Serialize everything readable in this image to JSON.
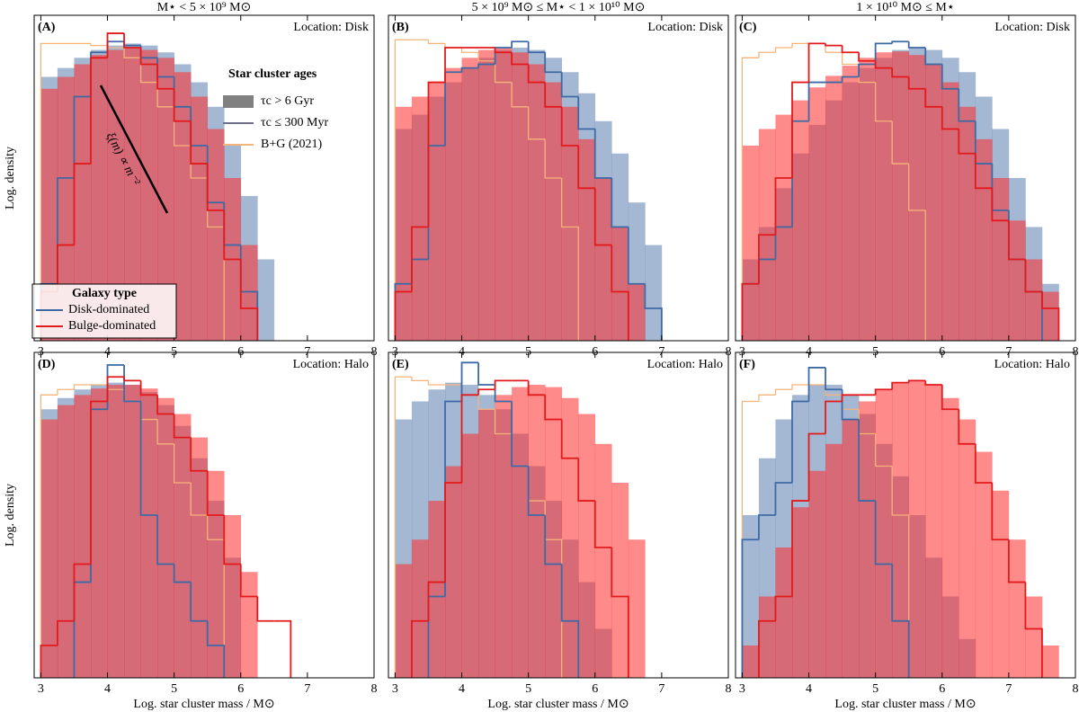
{
  "chart_data": [
    {
      "type": "histogram",
      "title": "M⋆ < 5 × 10⁹ M⊙",
      "panel_label": "(A)",
      "location": "Location: Disk",
      "ylabel": "Log. density",
      "log_y": true,
      "xlim": [
        2.9,
        8.0
      ],
      "xticks": [
        3,
        4,
        5,
        6,
        7,
        8
      ],
      "ylim": [
        0.0002,
        2
      ],
      "bins": [
        3,
        3.25,
        3.5,
        3.75,
        4,
        4.25,
        4.5,
        4.75,
        5,
        5.25,
        5.5,
        5.75,
        6,
        6.25,
        6.5,
        6.75,
        7,
        7.25,
        7.5,
        7.75,
        8
      ],
      "annotation": "ξ(m) ∝ m⁻²",
      "legends": [
        {
          "title": "Star cluster ages",
          "entries": [
            "τc > 6 Gyr",
            "τc ≤ 300 Myr",
            "B+G (2021)"
          ]
        },
        {
          "title": "Galaxy type",
          "entries": [
            "Disk-dominated",
            "Bulge-dominated"
          ]
        }
      ],
      "series": [
        {
          "name": "Disk-dominated",
          "style": "filled",
          "color": "#4a72a8",
          "values": [
            0.35,
            0.45,
            0.6,
            0.75,
            0.85,
            0.9,
            0.85,
            0.7,
            0.5,
            0.3,
            0.15,
            0.05,
            0.012,
            0.002,
            null,
            null,
            null,
            null,
            null,
            null
          ]
        },
        {
          "name": "Bulge-dominated",
          "style": "filled",
          "color": "#ff2a2a",
          "values": [
            0.25,
            0.35,
            0.5,
            0.65,
            0.75,
            0.8,
            0.75,
            0.6,
            0.4,
            0.2,
            0.08,
            0.02,
            0.003,
            null,
            null,
            null,
            null,
            null,
            null,
            null
          ]
        },
        {
          "name": "B+G (2021)",
          "style": "step",
          "color": "#f5b47a",
          "values": [
            0.9,
            0.9,
            0.9,
            0.85,
            0.8,
            0.6,
            0.3,
            0.15,
            0.05,
            0.02,
            0.005,
            null,
            null,
            null,
            null,
            null,
            null,
            null,
            null,
            null
          ]
        },
        {
          "name": "Disk-dominated",
          "style": "step",
          "color": "#3d6aa5",
          "values": [
            0.001,
            0.02,
            0.2,
            0.7,
            0.95,
            0.85,
            0.6,
            0.35,
            0.15,
            0.05,
            0.01,
            0.003,
            0.0008,
            null,
            null,
            null,
            null,
            null,
            null,
            null
          ]
        },
        {
          "name": "Bulge-dominated",
          "style": "step",
          "color": "#e31a1c",
          "values": [
            0.0008,
            0.003,
            0.03,
            0.6,
            1.2,
            0.8,
            0.5,
            0.25,
            0.1,
            0.03,
            0.008,
            0.002,
            0.0005,
            null,
            null,
            null,
            null,
            null,
            null,
            null
          ]
        }
      ]
    },
    {
      "type": "histogram",
      "title": "5 × 10⁹ M⊙ ≤ M⋆ < 1 × 10¹⁰ M⊙",
      "panel_label": "(B)",
      "location": "Location: Disk",
      "log_y": true,
      "xlim": [
        2.9,
        8.0
      ],
      "xticks": [
        3,
        4,
        5,
        6,
        7,
        8
      ],
      "ylim": [
        0.0002,
        2
      ],
      "bins": [
        3,
        3.25,
        3.5,
        3.75,
        4,
        4.25,
        4.5,
        4.75,
        5,
        5.25,
        5.5,
        5.75,
        6,
        6.25,
        6.5,
        6.75,
        7,
        7.25,
        7.5,
        7.75,
        8
      ],
      "series": [
        {
          "name": "Disk-dominated",
          "style": "filled",
          "color": "#4a72a8",
          "values": [
            0.08,
            0.12,
            0.2,
            0.3,
            0.45,
            0.6,
            0.75,
            0.8,
            0.75,
            0.6,
            0.4,
            0.22,
            0.1,
            0.04,
            0.01,
            0.003,
            null,
            null,
            null,
            null
          ]
        },
        {
          "name": "Bulge-dominated",
          "style": "filled",
          "color": "#ff2a2a",
          "values": [
            0.15,
            0.2,
            0.3,
            0.45,
            0.6,
            0.75,
            0.8,
            0.7,
            0.5,
            0.3,
            0.15,
            0.06,
            0.02,
            0.005,
            0.001,
            null,
            null,
            null,
            null,
            null
          ]
        },
        {
          "name": "B+G (2021)",
          "style": "step",
          "color": "#f5b47a",
          "values": [
            1.0,
            1.0,
            0.9,
            0.8,
            0.7,
            0.55,
            0.3,
            0.15,
            0.06,
            0.02,
            0.005,
            null,
            null,
            null,
            null,
            null,
            null,
            null,
            null,
            null
          ]
        },
        {
          "name": "Disk-dominated",
          "style": "step",
          "color": "#3d6aa5",
          "values": [
            0.001,
            0.002,
            0.05,
            0.4,
            0.45,
            0.5,
            0.8,
            0.95,
            0.7,
            0.4,
            0.2,
            0.08,
            0.02,
            0.005,
            0.001,
            0.0005,
            null,
            null,
            null,
            null
          ]
        },
        {
          "name": "Bulge-dominated",
          "style": "step",
          "color": "#e31a1c",
          "values": [
            0.0008,
            0.005,
            0.3,
            0.8,
            0.8,
            0.8,
            0.7,
            0.5,
            0.3,
            0.15,
            0.05,
            0.015,
            0.003,
            0.0008,
            null,
            null,
            null,
            null,
            null,
            null
          ]
        }
      ]
    },
    {
      "type": "histogram",
      "title": "1 × 10¹⁰ M⊙ ≤ M⋆",
      "panel_label": "(C)",
      "location": "Location: Disk",
      "log_y": true,
      "xlim": [
        2.9,
        8.0
      ],
      "xticks": [
        3,
        4,
        5,
        6,
        7,
        8
      ],
      "ylim": [
        0.0002,
        2
      ],
      "bins": [
        3,
        3.25,
        3.5,
        3.75,
        4,
        4.25,
        4.5,
        4.75,
        5,
        5.25,
        5.5,
        5.75,
        6,
        6.25,
        6.5,
        6.75,
        7,
        7.25,
        7.5,
        7.75,
        8
      ],
      "series": [
        {
          "name": "Disk-dominated",
          "style": "filled",
          "color": "#4a72a8",
          "values": [
            0.002,
            0.005,
            0.015,
            0.04,
            0.09,
            0.18,
            0.3,
            0.45,
            0.6,
            0.75,
            0.8,
            0.75,
            0.6,
            0.4,
            0.2,
            0.08,
            0.02,
            0.005,
            0.001,
            null
          ]
        },
        {
          "name": "Bulge-dominated",
          "style": "filled",
          "color": "#ff2a2a",
          "values": [
            0.05,
            0.08,
            0.12,
            0.18,
            0.26,
            0.36,
            0.48,
            0.6,
            0.7,
            0.72,
            0.65,
            0.5,
            0.3,
            0.15,
            0.06,
            0.02,
            0.006,
            0.002,
            0.0008,
            null
          ]
        },
        {
          "name": "B+G (2021)",
          "style": "step",
          "color": "#f5b47a",
          "values": [
            0.6,
            0.7,
            0.8,
            0.9,
            0.9,
            0.7,
            0.5,
            0.3,
            0.1,
            0.03,
            0.008,
            null,
            null,
            null,
            null,
            null,
            null,
            null,
            null,
            null
          ]
        },
        {
          "name": "Disk-dominated",
          "style": "step",
          "color": "#3d6aa5",
          "values": [
            0.001,
            0.002,
            0.005,
            0.1,
            0.3,
            0.3,
            0.35,
            0.5,
            0.9,
            0.95,
            0.8,
            0.5,
            0.25,
            0.1,
            0.03,
            0.008,
            0.002,
            0.0008,
            null,
            null
          ]
        },
        {
          "name": "Bulge-dominated",
          "style": "step",
          "color": "#e31a1c",
          "values": [
            0.001,
            0.004,
            0.02,
            0.3,
            0.9,
            0.85,
            0.7,
            0.55,
            0.45,
            0.35,
            0.25,
            0.15,
            0.08,
            0.04,
            0.015,
            0.006,
            0.002,
            0.0008,
            0.0005,
            null
          ]
        }
      ]
    },
    {
      "type": "histogram",
      "panel_label": "(D)",
      "location": "Location: Halo",
      "ylabel": "Log. density",
      "xlabel": "Log. star cluster mass / M⊙",
      "log_y": true,
      "xlim": [
        2.9,
        8.0
      ],
      "xticks": [
        3,
        4,
        5,
        6,
        7,
        8
      ],
      "ylim": [
        0.0002,
        2
      ],
      "bins": [
        3,
        3.25,
        3.5,
        3.75,
        4,
        4.25,
        4.5,
        4.75,
        5,
        5.25,
        5.5,
        5.75,
        6,
        6.25,
        6.5,
        6.75,
        7,
        7.25,
        7.5,
        7.75,
        8
      ],
      "series": [
        {
          "name": "Disk-dominated",
          "style": "filled",
          "color": "#4a72a8",
          "values": [
            0.4,
            0.55,
            0.7,
            0.8,
            0.85,
            0.8,
            0.65,
            0.45,
            0.25,
            0.1,
            0.03,
            0.006,
            null,
            null,
            null,
            null,
            null,
            null,
            null,
            null
          ]
        },
        {
          "name": "Bulge-dominated",
          "style": "filled",
          "color": "#ff2a2a",
          "values": [
            0.3,
            0.45,
            0.6,
            0.72,
            0.8,
            0.8,
            0.72,
            0.55,
            0.35,
            0.18,
            0.07,
            0.02,
            0.004,
            null,
            null,
            null,
            null,
            null,
            null,
            null
          ]
        },
        {
          "name": "B+G (2021)",
          "style": "step",
          "color": "#f5b47a",
          "values": [
            0.6,
            0.7,
            0.8,
            0.8,
            0.7,
            0.5,
            0.3,
            0.15,
            0.05,
            0.02,
            0.01,
            null,
            null,
            null,
            null,
            null,
            null,
            null,
            null,
            null
          ]
        },
        {
          "name": "Disk-dominated",
          "style": "step",
          "color": "#3d6aa5",
          "values": [
            null,
            null,
            0.003,
            0.4,
            1.4,
            0.5,
            0.02,
            0.005,
            0.003,
            0.001,
            0.0005,
            null,
            null,
            null,
            null,
            null,
            null,
            null,
            null,
            null
          ]
        },
        {
          "name": "Bulge-dominated",
          "style": "step",
          "color": "#e31a1c",
          "values": [
            0.0005,
            0.001,
            0.005,
            0.5,
            1.0,
            0.9,
            0.6,
            0.35,
            0.18,
            0.07,
            0.02,
            0.005,
            0.002,
            0.001,
            0.001,
            null,
            null,
            null,
            null,
            null
          ]
        }
      ]
    },
    {
      "type": "histogram",
      "panel_label": "(E)",
      "location": "Location: Halo",
      "xlabel": "Log. star cluster mass / M⊙",
      "log_y": true,
      "xlim": [
        2.9,
        8.0
      ],
      "xticks": [
        3,
        4,
        5,
        6,
        7,
        8
      ],
      "ylim": [
        0.0002,
        2
      ],
      "bins": [
        3,
        3.25,
        3.5,
        3.75,
        4,
        4.25,
        4.5,
        4.75,
        5,
        5.25,
        5.5,
        5.75,
        6,
        6.25,
        6.5,
        6.75,
        7,
        7.25,
        7.5,
        7.75,
        8
      ],
      "series": [
        {
          "name": "Disk-dominated",
          "style": "filled",
          "color": "#4a72a8",
          "values": [
            0.3,
            0.5,
            0.7,
            0.85,
            0.8,
            0.6,
            0.4,
            0.2,
            0.08,
            0.03,
            0.01,
            0.003,
            0.0008,
            null,
            null,
            null,
            null,
            null,
            null,
            null
          ]
        },
        {
          "name": "Bulge-dominated",
          "style": "filled",
          "color": "#ff2a2a",
          "values": [
            0.005,
            0.01,
            0.03,
            0.08,
            0.2,
            0.4,
            0.6,
            0.75,
            0.8,
            0.75,
            0.55,
            0.35,
            0.15,
            0.05,
            0.01,
            null,
            null,
            null,
            null,
            null
          ]
        },
        {
          "name": "B+G (2021)",
          "style": "step",
          "color": "#f5b47a",
          "values": [
            1.0,
            0.9,
            0.8,
            0.8,
            0.6,
            0.4,
            0.2,
            0.08,
            0.03,
            0.01,
            null,
            null,
            null,
            null,
            null,
            null,
            null,
            null,
            null,
            null
          ]
        },
        {
          "name": "Disk-dominated",
          "style": "step",
          "color": "#3d6aa5",
          "values": [
            null,
            null,
            0.002,
            0.5,
            1.5,
            0.8,
            0.5,
            0.08,
            0.02,
            0.005,
            0.001,
            null,
            null,
            null,
            null,
            null,
            null,
            null,
            null,
            null
          ]
        },
        {
          "name": "Bulge-dominated",
          "style": "step",
          "color": "#e31a1c",
          "values": [
            null,
            0.001,
            0.003,
            0.05,
            0.6,
            0.7,
            0.9,
            0.9,
            0.6,
            0.3,
            0.1,
            0.03,
            0.008,
            0.002,
            null,
            null,
            null,
            null,
            null,
            null
          ]
        }
      ]
    },
    {
      "type": "histogram",
      "panel_label": "(F)",
      "location": "Location: Halo",
      "xlabel": "Log. star cluster mass / M⊙",
      "log_y": true,
      "xlim": [
        2.9,
        8.0
      ],
      "xticks": [
        3,
        4,
        5,
        6,
        7,
        8
      ],
      "ylim": [
        0.0002,
        2
      ],
      "bins": [
        3,
        3.25,
        3.5,
        3.75,
        4,
        4.25,
        4.5,
        4.75,
        5,
        5.25,
        5.5,
        5.75,
        6,
        6.25,
        6.5,
        6.75,
        7,
        7.25,
        7.5,
        7.75,
        8
      ],
      "series": [
        {
          "name": "Disk-dominated",
          "style": "filled",
          "color": "#4a72a8",
          "values": [
            0.02,
            0.1,
            0.3,
            0.6,
            0.8,
            0.8,
            0.6,
            0.35,
            0.15,
            0.06,
            0.02,
            0.006,
            0.002,
            0.0006,
            null,
            null,
            null,
            null,
            null,
            null
          ]
        },
        {
          "name": "Bulge-dominated",
          "style": "filled",
          "color": "#ff2a2a",
          "values": [
            0.0005,
            0.002,
            0.008,
            0.025,
            0.07,
            0.15,
            0.3,
            0.5,
            0.7,
            0.85,
            0.9,
            0.8,
            0.55,
            0.3,
            0.12,
            0.04,
            0.01,
            0.002,
            0.0005,
            null
          ]
        },
        {
          "name": "B+G (2021)",
          "style": "step",
          "color": "#f5b47a",
          "values": [
            0.5,
            0.6,
            0.7,
            0.8,
            0.8,
            0.6,
            0.4,
            0.2,
            0.08,
            0.02,
            null,
            null,
            null,
            null,
            null,
            null,
            null,
            null,
            null,
            null
          ]
        },
        {
          "name": "Disk-dominated",
          "style": "step",
          "color": "#3d6aa5",
          "values": [
            0.01,
            0.02,
            0.05,
            0.5,
            1.3,
            0.7,
            0.3,
            0.03,
            0.005,
            0.001,
            null,
            null,
            null,
            null,
            null,
            null,
            null,
            null,
            null,
            null
          ]
        },
        {
          "name": "Bulge-dominated",
          "style": "step",
          "color": "#e31a1c",
          "values": [
            null,
            0.001,
            0.002,
            0.03,
            0.2,
            0.5,
            0.6,
            0.6,
            0.7,
            0.85,
            0.9,
            0.8,
            0.4,
            0.15,
            0.05,
            0.01,
            0.003,
            0.0008,
            null,
            null
          ]
        }
      ]
    }
  ]
}
